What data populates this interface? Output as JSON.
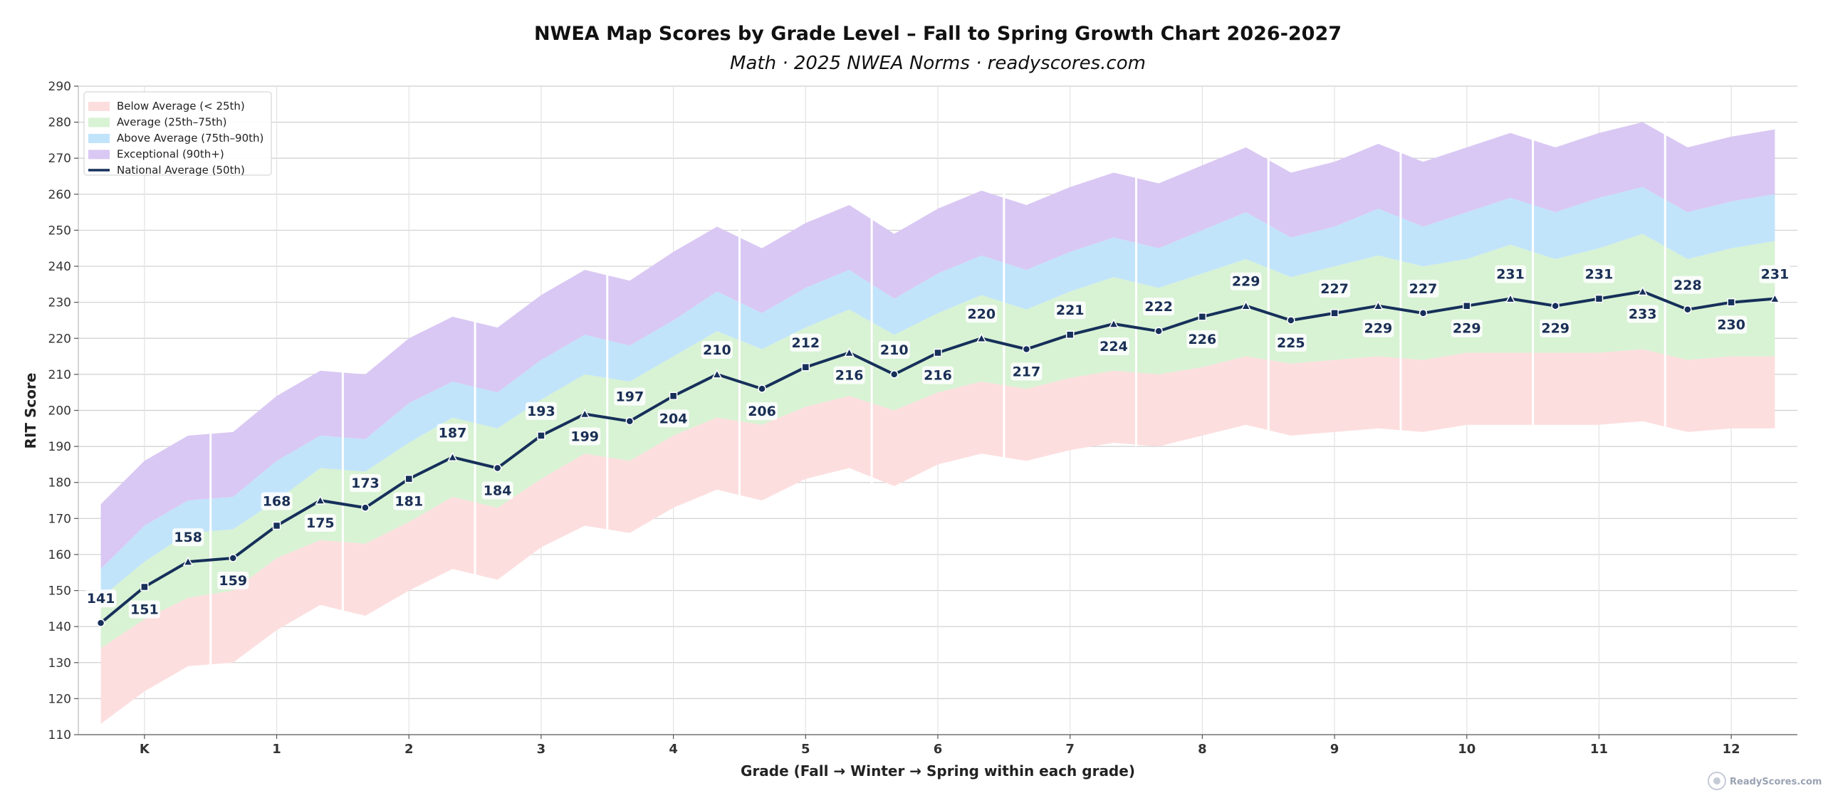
{
  "chart_data": {
    "type": "line",
    "title": "NWEA Map Scores by Grade Level – Fall to Spring Growth Chart 2026-2027",
    "subtitle": "Math · 2025 NWEA Norms · readyscores.com",
    "xlabel": "Grade (Fall → Winter → Spring within each grade)",
    "ylabel": "RIT Score",
    "ylim": [
      110,
      290
    ],
    "yticks": [
      110,
      120,
      130,
      140,
      150,
      160,
      170,
      180,
      190,
      200,
      210,
      220,
      230,
      240,
      250,
      260,
      270,
      280,
      290
    ],
    "grid": true,
    "legend_position": "top-left",
    "grades": [
      "K",
      "1",
      "2",
      "3",
      "4",
      "5",
      "6",
      "7",
      "8",
      "9",
      "10",
      "11",
      "12"
    ],
    "x": [
      0.67,
      1,
      1.33,
      1.67,
      2,
      2.33,
      2.67,
      3,
      3.33,
      3.67,
      4,
      4.33,
      4.67,
      5,
      5.33,
      5.67,
      6,
      6.33,
      6.67,
      7,
      7.33,
      7.67,
      8,
      8.33,
      8.67,
      9,
      9.33,
      9.67,
      10,
      10.33,
      10.67,
      11,
      11.33,
      11.67,
      12,
      12.33,
      12.67,
      13,
      13.33
    ],
    "bands": [
      {
        "name": "Below Average (< 25th)",
        "color": "#fddede",
        "lower": [
          113,
          122,
          129,
          130,
          139,
          146,
          143,
          150,
          156,
          153,
          162,
          168,
          166,
          173,
          178,
          175,
          181,
          184,
          179,
          185,
          188,
          186,
          189,
          191,
          190,
          193,
          196,
          193,
          194,
          195,
          194,
          196,
          196,
          196,
          196,
          197,
          194,
          195,
          195
        ],
        "upper": [
          134,
          142,
          148,
          150,
          159,
          164,
          163,
          169,
          176,
          173,
          181,
          188,
          186,
          193,
          198,
          196,
          201,
          204,
          200,
          205,
          208,
          206,
          209,
          211,
          210,
          212,
          215,
          213,
          214,
          215,
          214,
          216,
          216,
          216,
          216,
          217,
          214,
          215,
          215
        ]
      },
      {
        "name": "Average (25th–75th)",
        "color": "#d8f2d4",
        "lower": [
          134,
          142,
          148,
          150,
          159,
          164,
          163,
          169,
          176,
          173,
          181,
          188,
          186,
          193,
          198,
          196,
          201,
          204,
          200,
          205,
          208,
          206,
          209,
          211,
          210,
          212,
          215,
          213,
          214,
          215,
          214,
          216,
          216,
          216,
          216,
          217,
          214,
          215,
          215
        ],
        "upper": [
          148,
          158,
          166,
          167,
          175,
          184,
          183,
          191,
          198,
          195,
          203,
          210,
          208,
          215,
          222,
          217,
          223,
          228,
          221,
          227,
          232,
          228,
          233,
          237,
          234,
          238,
          242,
          237,
          240,
          243,
          240,
          242,
          246,
          242,
          245,
          249,
          242,
          245,
          247
        ]
      },
      {
        "name": "Above Average (75th–90th)",
        "color": "#c1e4fb",
        "lower": [
          148,
          158,
          166,
          167,
          175,
          184,
          183,
          191,
          198,
          195,
          203,
          210,
          208,
          215,
          222,
          217,
          223,
          228,
          221,
          227,
          232,
          228,
          233,
          237,
          234,
          238,
          242,
          237,
          240,
          243,
          240,
          242,
          246,
          242,
          245,
          249,
          242,
          245,
          247
        ],
        "upper": [
          156,
          168,
          175,
          176,
          186,
          193,
          192,
          202,
          208,
          205,
          214,
          221,
          218,
          225,
          233,
          227,
          234,
          239,
          231,
          238,
          243,
          239,
          244,
          248,
          245,
          250,
          255,
          248,
          251,
          256,
          251,
          255,
          259,
          255,
          259,
          262,
          255,
          258,
          260
        ]
      },
      {
        "name": "Exceptional (90th+)",
        "color": "#d9c8f3",
        "lower": [
          156,
          168,
          175,
          176,
          186,
          193,
          192,
          202,
          208,
          205,
          214,
          221,
          218,
          225,
          233,
          227,
          234,
          239,
          231,
          238,
          243,
          239,
          244,
          248,
          245,
          250,
          255,
          248,
          251,
          256,
          251,
          255,
          259,
          255,
          259,
          262,
          255,
          258,
          260
        ],
        "upper": [
          174,
          186,
          193,
          194,
          204,
          211,
          210,
          220,
          226,
          223,
          232,
          239,
          236,
          244,
          251,
          245,
          252,
          257,
          249,
          256,
          261,
          257,
          262,
          266,
          263,
          268,
          273,
          266,
          269,
          274,
          269,
          273,
          277,
          273,
          277,
          280,
          273,
          276,
          278
        ]
      }
    ],
    "series": [
      {
        "name": "National Average (50th)",
        "color": "#16305a",
        "values": [
          141,
          151,
          158,
          159,
          168,
          175,
          173,
          181,
          187,
          184,
          193,
          199,
          197,
          204,
          210,
          206,
          212,
          216,
          210,
          216,
          220,
          217,
          221,
          224,
          222,
          226,
          229,
          225,
          227,
          229,
          227,
          229,
          231,
          229,
          231,
          233,
          228,
          230,
          231
        ],
        "labels_above": [
          true,
          false,
          true,
          false,
          true,
          false,
          true,
          false,
          true,
          false,
          true,
          false,
          true,
          false,
          true,
          false,
          true,
          false,
          true,
          false,
          true,
          false,
          true,
          false,
          true,
          false,
          true,
          false,
          true,
          false,
          true,
          false,
          true,
          false,
          true,
          false,
          true,
          false,
          true
        ]
      }
    ]
  },
  "watermark": {
    "text": "ReadyScores.com"
  }
}
